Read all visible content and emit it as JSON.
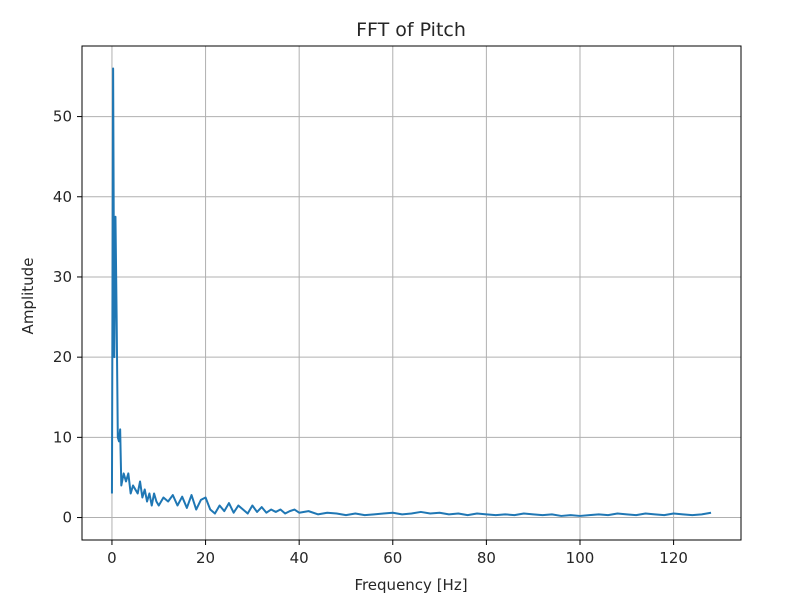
{
  "chart_data": {
    "type": "line",
    "title": "FFT of Pitch",
    "xlabel": "Frequency [Hz]",
    "ylabel": "Amplitude",
    "xlim": [
      -6.4,
      134.4
    ],
    "ylim": [
      -2.8,
      58.8
    ],
    "xticks": [
      0,
      20,
      40,
      60,
      80,
      100,
      120
    ],
    "yticks": [
      0,
      10,
      20,
      30,
      40,
      50
    ],
    "grid": true,
    "legend": "none",
    "series": [
      {
        "color": "#1f77b4",
        "x": [
          0,
          0.25,
          0.5,
          0.75,
          1.0,
          1.25,
          1.5,
          1.75,
          2.0,
          2.5,
          3.0,
          3.5,
          4.0,
          4.5,
          5.0,
          5.5,
          6.0,
          6.5,
          7.0,
          7.5,
          8.0,
          8.5,
          9.0,
          9.5,
          10.0,
          11.0,
          12.0,
          13.0,
          14.0,
          15.0,
          16.0,
          17.0,
          18.0,
          19.0,
          20.0,
          21.0,
          22.0,
          23.0,
          24.0,
          25.0,
          26.0,
          27.0,
          28.0,
          29.0,
          30.0,
          31.0,
          32.0,
          33.0,
          34.0,
          35.0,
          36.0,
          37.0,
          38.0,
          39.0,
          40.0,
          42.0,
          44.0,
          46.0,
          48.0,
          50.0,
          52.0,
          54.0,
          56.0,
          58.0,
          60.0,
          62.0,
          64.0,
          66.0,
          68.0,
          70.0,
          72.0,
          74.0,
          76.0,
          78.0,
          80.0,
          82.0,
          84.0,
          86.0,
          88.0,
          90.0,
          92.0,
          94.0,
          96.0,
          98.0,
          100.0,
          102.0,
          104.0,
          106.0,
          108.0,
          110.0,
          112.0,
          114.0,
          116.0,
          118.0,
          120.0,
          122.0,
          124.0,
          126.0,
          128.0
        ],
        "y": [
          3.0,
          56.0,
          20.0,
          37.5,
          25.0,
          10.0,
          9.5,
          11.0,
          4.0,
          5.5,
          4.5,
          5.5,
          3.0,
          4.0,
          3.5,
          3.0,
          4.5,
          2.5,
          3.5,
          2.0,
          3.0,
          1.5,
          3.0,
          2.0,
          1.5,
          2.5,
          2.0,
          2.8,
          1.5,
          2.6,
          1.2,
          2.8,
          1.0,
          2.2,
          2.5,
          1.0,
          0.5,
          1.5,
          0.8,
          1.8,
          0.6,
          1.5,
          1.0,
          0.5,
          1.5,
          0.7,
          1.3,
          0.6,
          1.0,
          0.7,
          1.0,
          0.5,
          0.8,
          1.0,
          0.6,
          0.8,
          0.4,
          0.6,
          0.5,
          0.3,
          0.5,
          0.3,
          0.4,
          0.5,
          0.6,
          0.4,
          0.5,
          0.7,
          0.5,
          0.6,
          0.4,
          0.5,
          0.3,
          0.5,
          0.4,
          0.3,
          0.4,
          0.3,
          0.5,
          0.4,
          0.3,
          0.4,
          0.2,
          0.3,
          0.2,
          0.3,
          0.4,
          0.3,
          0.5,
          0.4,
          0.3,
          0.5,
          0.4,
          0.3,
          0.5,
          0.4,
          0.3,
          0.4,
          0.6
        ]
      }
    ]
  }
}
